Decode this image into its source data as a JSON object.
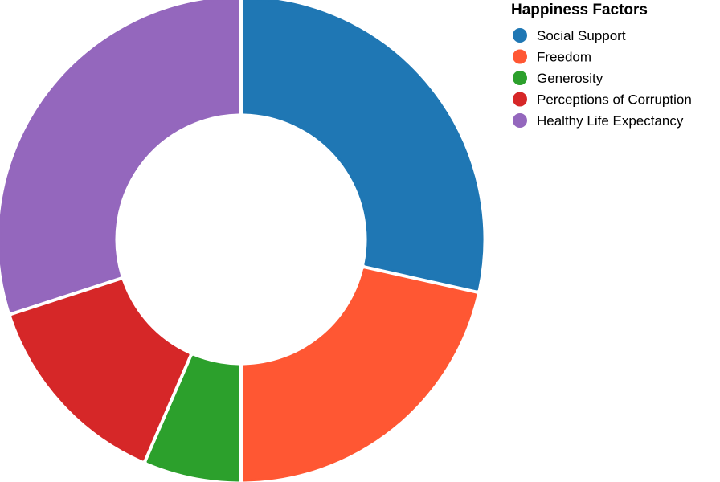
{
  "chart_data": {
    "type": "pie",
    "donut": true,
    "legend": {
      "title": "Happiness Factors",
      "placement": "top-right"
    },
    "categories": [
      "Social Support",
      "Freedom",
      "Generosity",
      "Perceptions of Corruption",
      "Healthy Life Expectancy"
    ],
    "values": [
      28.5,
      21.5,
      6.5,
      13.5,
      30.0
    ],
    "colors": [
      "#1f77b4",
      "#ff5733",
      "#2ca02c",
      "#d62728",
      "#9467bd"
    ]
  }
}
